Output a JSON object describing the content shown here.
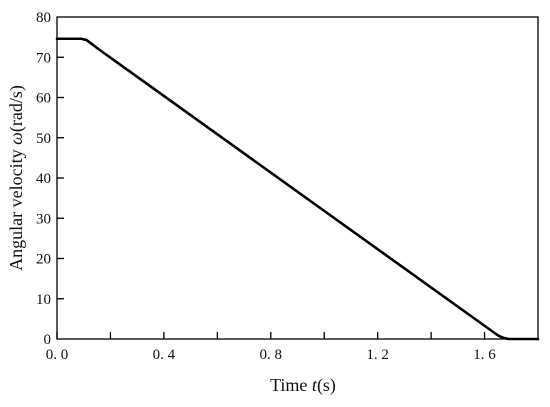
{
  "chart_data": {
    "type": "line",
    "title": "",
    "xlabel": {
      "prefix": "Time ",
      "symbol": "t",
      "suffix": "(s)"
    },
    "ylabel": {
      "prefix": "Angular velocity ",
      "symbol": "ω",
      "suffix": "(rad/s)"
    },
    "xlim": [
      0.0,
      1.8
    ],
    "ylim": [
      0,
      80
    ],
    "x_ticks": [
      0.0,
      0.4,
      0.8,
      1.2,
      1.6
    ],
    "x_tick_labels": [
      "0. 0",
      "0. 4",
      "0. 8",
      "1. 2",
      "1. 6"
    ],
    "x_minor_ticks": [
      0.2,
      0.6,
      1.0,
      1.4
    ],
    "y_ticks": [
      0,
      10,
      20,
      30,
      40,
      50,
      60,
      70,
      80
    ],
    "y_tick_labels": [
      "0",
      "10",
      "20",
      "30",
      "40",
      "50",
      "60",
      "70",
      "80"
    ],
    "grid": false,
    "legend": "none",
    "series": [
      {
        "color": "#000000",
        "x": [
          0.0,
          0.09,
          0.11,
          0.13,
          0.16,
          1.65,
          1.67,
          1.69,
          1.8
        ],
        "y": [
          74.6,
          74.6,
          74.3,
          73.3,
          71.8,
          0.9,
          0.3,
          0.0,
          0.0
        ]
      }
    ]
  }
}
